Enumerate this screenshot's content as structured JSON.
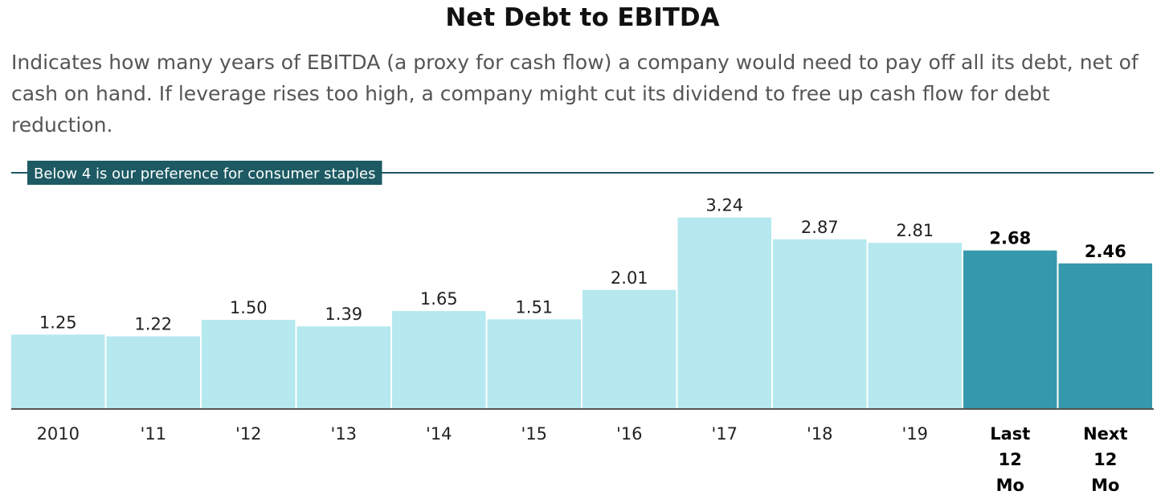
{
  "title": "Net Debt to EBITDA",
  "subtitle": "Indicates how many years of EBITDA (a proxy for cash flow) a company would need to pay off all its debt, net of cash on hand. If leverage rises too high, a company might cut its dividend to free up cash flow for debt reduction.",
  "colors": {
    "historical_bar": "#b5e8ef",
    "projected_bar": "#3698ad",
    "reference_line": "#1d5a63",
    "axis": "#555555"
  },
  "chart_data": {
    "type": "bar",
    "title": "Net Debt to EBITDA",
    "categories": [
      "2010",
      "'11",
      "'12",
      "'13",
      "'14",
      "'15",
      "'16",
      "'17",
      "'18",
      "'19",
      "Last 12 Mo",
      "Next 12 Mo"
    ],
    "values": [
      1.25,
      1.22,
      1.5,
      1.39,
      1.65,
      1.51,
      2.01,
      3.24,
      2.87,
      2.81,
      2.68,
      2.46
    ],
    "value_labels": [
      "1.25",
      "1.22",
      "1.50",
      "1.39",
      "1.65",
      "1.51",
      "2.01",
      "3.24",
      "2.87",
      "2.81",
      "2.68",
      "2.46"
    ],
    "highlighted": [
      false,
      false,
      false,
      false,
      false,
      false,
      false,
      false,
      false,
      false,
      true,
      true
    ],
    "ylim": [
      0,
      4
    ],
    "reference_line": {
      "value": 4,
      "label": "Below 4 is our preference for consumer staples"
    },
    "xlabel": "",
    "ylabel": "",
    "grid": false
  }
}
